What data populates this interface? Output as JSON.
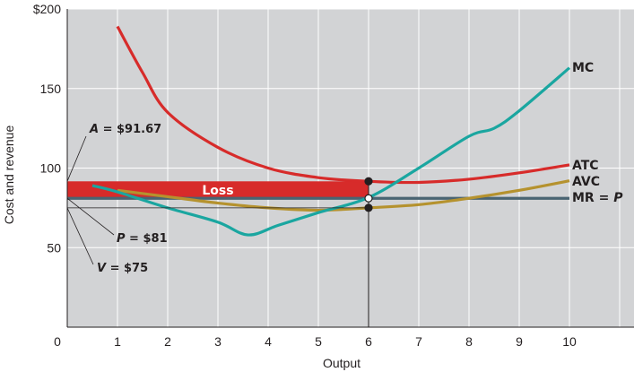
{
  "chart_data": {
    "type": "line",
    "xlabel": "Output",
    "ylabel": "Cost and revenue",
    "xlim": [
      0,
      11
    ],
    "ylim": [
      0,
      200
    ],
    "grid": true,
    "x_ticks": [
      "0",
      "1",
      "2",
      "3",
      "4",
      "5",
      "6",
      "7",
      "8",
      "9",
      "10"
    ],
    "y_ticks": [
      {
        "value": 50,
        "label": "50"
      },
      {
        "value": 100,
        "label": "100"
      },
      {
        "value": 150,
        "label": "150"
      },
      {
        "value": 200,
        "label": "$200"
      }
    ],
    "series": [
      {
        "name": "MC",
        "color": "#1aa6a0",
        "points": [
          [
            0.5,
            89
          ],
          [
            1,
            85
          ],
          [
            2,
            75
          ],
          [
            3,
            66
          ],
          [
            3.6,
            58
          ],
          [
            4.2,
            64
          ],
          [
            5,
            72
          ],
          [
            6,
            81.5
          ],
          [
            7,
            100
          ],
          [
            8,
            120
          ],
          [
            8.5,
            125
          ],
          [
            9,
            136
          ],
          [
            10,
            163
          ]
        ]
      },
      {
        "name": "ATC",
        "color": "#d72b2a",
        "points": [
          [
            1,
            189
          ],
          [
            1.5,
            160
          ],
          [
            2,
            135
          ],
          [
            3,
            113
          ],
          [
            4,
            100
          ],
          [
            5,
            94
          ],
          [
            6,
            91.67
          ],
          [
            7,
            91
          ],
          [
            8,
            93
          ],
          [
            9,
            97
          ],
          [
            10,
            102
          ]
        ]
      },
      {
        "name": "AVC",
        "color": "#b5922e",
        "points": [
          [
            1,
            86
          ],
          [
            2,
            82
          ],
          [
            3,
            78
          ],
          [
            4,
            75
          ],
          [
            5,
            73.5
          ],
          [
            6,
            75
          ],
          [
            7,
            77
          ],
          [
            8,
            81
          ],
          [
            9,
            86
          ],
          [
            10,
            92
          ]
        ]
      },
      {
        "name": "MR = P",
        "color": "#4a6472",
        "points": [
          [
            0,
            81
          ],
          [
            10,
            81
          ]
        ]
      }
    ],
    "shaded_region": {
      "label": "Loss",
      "y_from": 81,
      "y_to": 91.67,
      "x_from": 0,
      "x_to": 6,
      "color": "#d72b2a"
    },
    "vertical_line": {
      "x": 6,
      "y_from": 0,
      "y_to": 91.67
    },
    "markers": [
      {
        "x": 6,
        "y": 91.67,
        "style": "filled"
      },
      {
        "x": 6,
        "y": 81,
        "style": "open"
      },
      {
        "x": 6,
        "y": 75,
        "style": "filled"
      }
    ],
    "annotations": [
      {
        "label": "A = $91.67",
        "y": 91.67,
        "side": "upper"
      },
      {
        "label": "P = $81",
        "y": 81,
        "side": "lower"
      },
      {
        "label": "V = $75",
        "y": 75,
        "side": "lower2"
      }
    ],
    "p_reference_line": {
      "y": 75,
      "x_from": 0,
      "x_to": 6
    }
  }
}
